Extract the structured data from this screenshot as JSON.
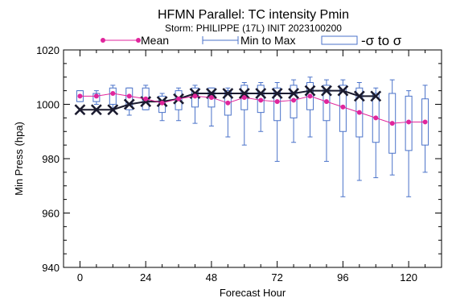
{
  "title": "HFMN Parallel: TC intensity Pmin",
  "subtitle": "Storm: PHILIPPE (17L) INIT 2023100200",
  "legend": {
    "mean_label": "Mean",
    "minmax_label": "Min to Max",
    "sigma_label": "-σ to σ"
  },
  "colors": {
    "mean": "#e0259c",
    "box": "#4a72c9",
    "best_track": "#1a1a2e"
  },
  "chart_data": {
    "type": "box",
    "xlabel": "Forecast Hour",
    "ylabel": "Min Press (hpa)",
    "xlim": [
      -6,
      132
    ],
    "ylim": [
      940,
      1020
    ],
    "xticks": [
      0,
      24,
      48,
      72,
      96,
      120
    ],
    "yticks": [
      940,
      960,
      980,
      1000,
      1020
    ],
    "grid": false,
    "legend_position": "top",
    "hours": [
      0,
      6,
      12,
      18,
      24,
      30,
      36,
      42,
      48,
      54,
      60,
      66,
      72,
      78,
      84,
      90,
      96,
      102,
      108,
      114,
      120,
      126
    ],
    "series": [
      {
        "name": "Mean",
        "values": [
          1003,
          1003,
          1004,
          1003,
          1002,
          1000.5,
          1002,
          1003,
          1002.5,
          1000.5,
          1002.5,
          1001.5,
          1001,
          1001.5,
          1003,
          1001,
          999,
          997,
          995,
          993,
          993.5,
          993.5
        ]
      },
      {
        "name": "Min to Max",
        "min": [
          1001,
          1000,
          998,
          996,
          998,
          994,
          994,
          993,
          992,
          988,
          985,
          990,
          979,
          986,
          988,
          979,
          966,
          972,
          973,
          974,
          966,
          975
        ],
        "max": [
          1005,
          1005,
          1007,
          1006,
          1007,
          1004,
          1006,
          1007,
          1006,
          1006,
          1008,
          1008,
          1008,
          1009,
          1010,
          1009,
          1009,
          1008,
          1006,
          1009,
          1005,
          1007
        ]
      },
      {
        "name": "-σ to σ",
        "low": [
          1001,
          1001,
          1000,
          998,
          998,
          997,
          998,
          999,
          999,
          996,
          998,
          997,
          994,
          995,
          998,
          994,
          990,
          988,
          986,
          982,
          983,
          985
        ],
        "high": [
          1005,
          1004,
          1006,
          1006,
          1006,
          1003,
          1005,
          1006,
          1006,
          1005,
          1007,
          1007,
          1006,
          1007,
          1008,
          1007,
          1007,
          1006,
          1004,
          1004,
          1003,
          1002
        ]
      },
      {
        "values": [
          998,
          998,
          998,
          1000,
          1001,
          1001,
          1002,
          1004,
          1004,
          1004,
          1004,
          1004,
          1004,
          1004,
          1005,
          1005,
          1005,
          1003,
          1003
        ]
      }
    ]
  }
}
